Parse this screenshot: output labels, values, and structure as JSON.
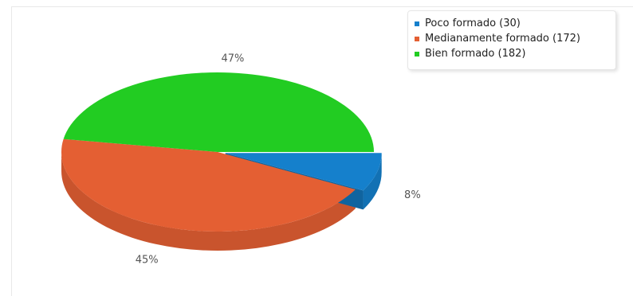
{
  "chart_data": {
    "type": "pie",
    "style": "3d",
    "slices": [
      {
        "label": "Poco formado (30)",
        "value": 30,
        "percent_label": "8%",
        "color": "#1580cc"
      },
      {
        "label": "Medianamente formado (172)",
        "value": 172,
        "percent_label": "45%",
        "color": "#e45f33"
      },
      {
        "label": "Bien formado (182)",
        "value": 182,
        "percent_label": "47%",
        "color": "#22cc22"
      }
    ],
    "legend_position": "top-right",
    "exploded_slice": "Poco formado (30)"
  }
}
